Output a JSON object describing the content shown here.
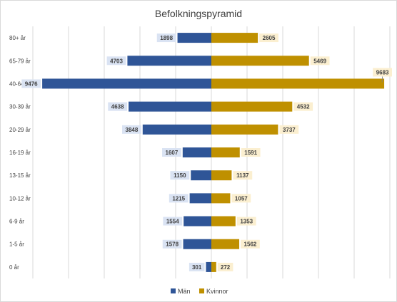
{
  "chart_data": {
    "type": "bar",
    "orientation": "horizontal",
    "title": "Befolkningspyramid",
    "categories": [
      "80+ år",
      "65-79 år",
      "40-64 år",
      "30-39 år",
      "20-29 år",
      "16-19 år",
      "13-15 år",
      "10-12 år",
      "6-9 år",
      "1-5 år",
      "0 år"
    ],
    "series": [
      {
        "name": "Män",
        "color": "#2f5597",
        "label_bg": "#dae3f3",
        "values": [
          1898,
          4703,
          9476,
          4638,
          3848,
          1607,
          1150,
          1215,
          1554,
          1578,
          301
        ]
      },
      {
        "name": "Kvinnor",
        "color": "#bf9000",
        "label_bg": "#fbefd0",
        "values": [
          2605,
          5469,
          9683,
          4532,
          3737,
          1591,
          1137,
          1057,
          1353,
          1562,
          272
        ]
      }
    ],
    "xlim": [
      -10000,
      10000
    ],
    "grid_step": 2000,
    "grid": true,
    "legend_position": "bottom",
    "gridline_color": "#d9d9d9"
  }
}
